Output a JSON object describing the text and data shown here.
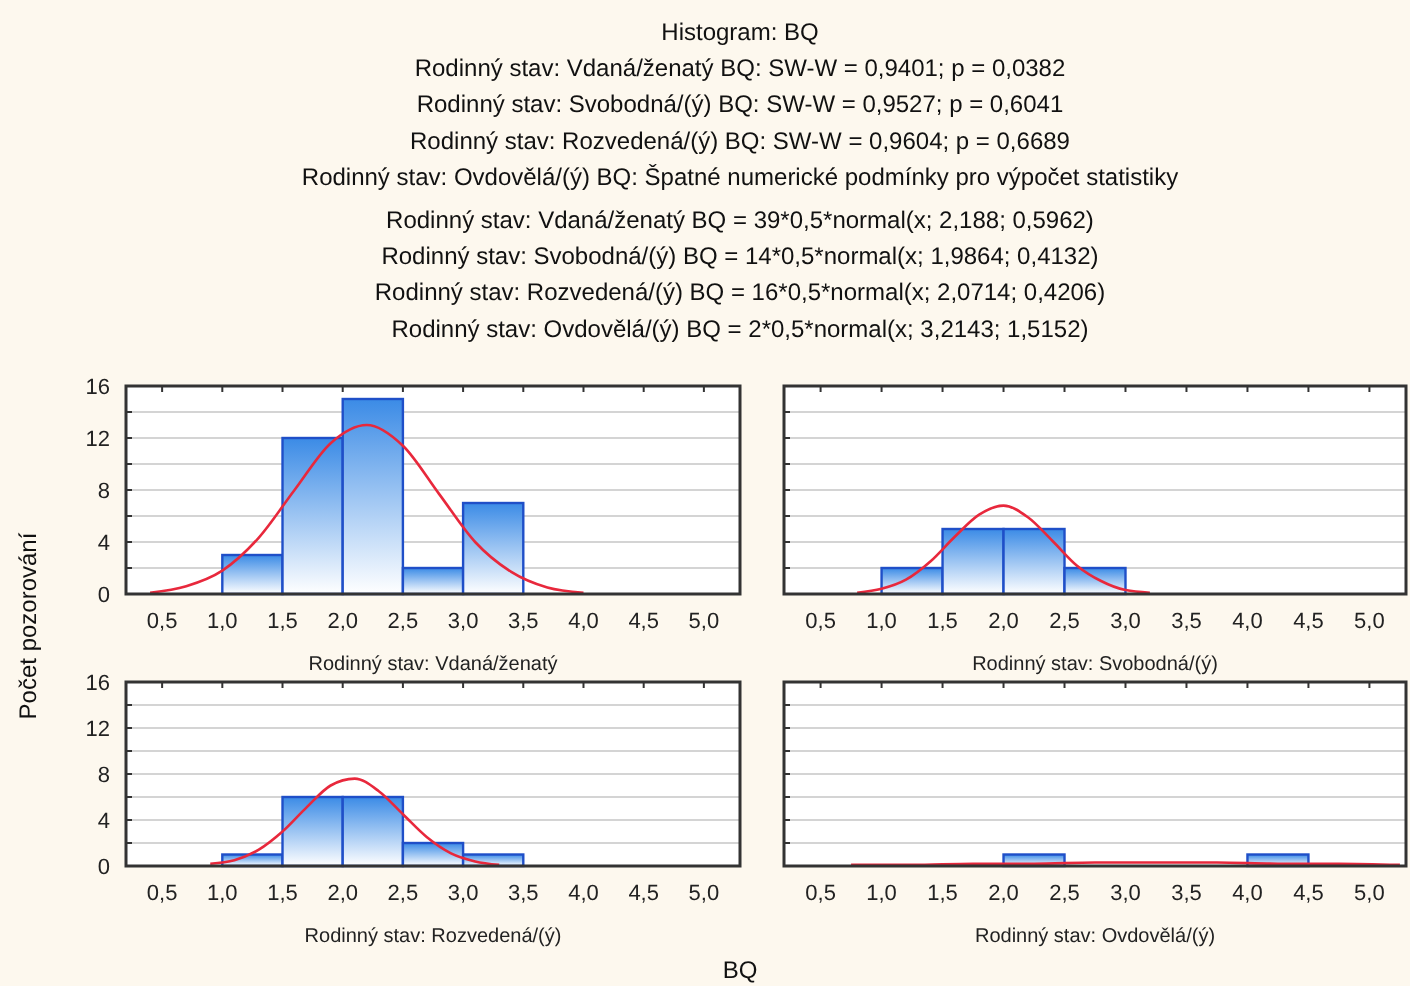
{
  "chart_data": [
    {
      "type": "histogram",
      "title": "Histogram: BQ",
      "xlabel": "Rodinný stav: Vdaná/ženatý",
      "ylabel": "Počet pozorování",
      "annotations": [
        "Rodinný stav: Vdaná/ženatý  BQ:   SW-W = 0,9401; p = 0,0382",
        "Rodinný stav: Svobodná/(ý)  BQ:   SW-W = 0,9527; p = 0,6041",
        "Rodinný stav: Rozvedená/(ý)  BQ:   SW-W = 0,9604; p = 0,6689",
        "Rodinný stav: Ovdovělá/(ý)  BQ:  Špatné numerické podmínky pro výpočet statistiky",
        "Rodinný stav: Vdaná/ženatý BQ = 39*0,5*normal(x; 2,188; 0,5962)",
        "Rodinný stav: Svobodná/(ý) BQ = 14*0,5*normal(x; 1,9864; 0,4132)",
        "Rodinný stav: Rozvedená/(ý) BQ = 16*0,5*normal(x; 2,0714; 0,4206)",
        "Rodinný stav: Ovdovělá/(ý) BQ = 2*0,5*normal(x; 3,2143; 1,5152)",
        "BQ"
      ],
      "series": [
        {
          "color": "#1f4fc8",
          "bins": [
            1,
            1.5,
            2,
            2.5,
            3,
            3.5
          ],
          "values": [
            3,
            12,
            15,
            2,
            7
          ]
        },
        {
          "type": "line",
          "color": "#e8283c",
          "x": [
            0.4,
            0.7,
            1,
            1.3,
            1.6,
            1.9,
            2.2,
            2.5,
            2.8,
            3.1,
            3.4,
            3.7,
            4
          ],
          "values": [
            0.1,
            0.6,
            1.8,
            4.3,
            8,
            11.6,
            13,
            11.4,
            7.7,
            4,
            1.7,
            0.5,
            0.1
          ]
        }
      ],
      "xlim": [
        0.2,
        5.3
      ],
      "ylim": [
        0,
        16
      ],
      "xticks": [
        {
          "value": 0.5,
          "label": "0,5"
        },
        {
          "value": 1,
          "label": "1,0"
        },
        {
          "value": 1.5,
          "label": "1,5"
        },
        {
          "value": 2,
          "label": "2,0"
        },
        {
          "value": 2.5,
          "label": "2,5"
        },
        {
          "value": 3,
          "label": "3,0"
        },
        {
          "value": 3.5,
          "label": "3,5"
        },
        {
          "value": 4,
          "label": "4,0"
        },
        {
          "value": 4.5,
          "label": "4,5"
        },
        {
          "value": 5,
          "label": "5,0"
        }
      ],
      "yticks": [
        0,
        {
          "value": 2,
          "label": null
        },
        4,
        {
          "value": 6,
          "label": null
        },
        8,
        {
          "value": 10,
          "label": null
        },
        12,
        {
          "value": 14,
          "label": null
        },
        16
      ],
      "grid": "y"
    },
    {
      "type": "histogram",
      "xlabel": "Rodinný stav: Svobodná/(ý)",
      "series": [
        {
          "color": "#1f4fc8",
          "bins": [
            1,
            1.5,
            2,
            2.5,
            3
          ],
          "values": [
            2,
            5,
            5,
            2
          ]
        },
        {
          "type": "line",
          "color": "#e8283c",
          "x": [
            0.8,
            1,
            1.2,
            1.4,
            1.6,
            1.8,
            2,
            2.2,
            2.4,
            2.6,
            2.8,
            3,
            3.2
          ],
          "values": [
            0.1,
            0.4,
            1.1,
            2.5,
            4.4,
            6.1,
            6.8,
            5.9,
            4.1,
            2.2,
            1,
            0.3,
            0.1
          ]
        }
      ],
      "xlim": [
        0.2,
        5.3
      ],
      "ylim": [
        0,
        16
      ],
      "xticks": [
        {
          "value": 0.5,
          "label": "0,5"
        },
        {
          "value": 1,
          "label": "1,0"
        },
        {
          "value": 1.5,
          "label": "1,5"
        },
        {
          "value": 2,
          "label": "2,0"
        },
        {
          "value": 2.5,
          "label": "2,5"
        },
        {
          "value": 3,
          "label": "3,0"
        },
        {
          "value": 3.5,
          "label": "3,5"
        },
        {
          "value": 4,
          "label": "4,0"
        },
        {
          "value": 4.5,
          "label": "4,5"
        },
        {
          "value": 5,
          "label": "5,0"
        }
      ],
      "yticks": [
        0,
        {
          "value": 2,
          "label": null
        },
        4,
        {
          "value": 6,
          "label": null
        },
        8,
        {
          "value": 10,
          "label": null
        },
        12,
        {
          "value": 14,
          "label": null
        },
        16
      ],
      "grid": "y",
      "tick_labels": "x"
    },
    {
      "type": "histogram",
      "xlabel": "Rodinný stav: Rozvedená/(ý)",
      "series": [
        {
          "color": "#1f4fc8",
          "bins": [
            1,
            1.5,
            2,
            2.5,
            3,
            3.5
          ],
          "values": [
            1,
            6,
            6,
            2,
            1
          ]
        },
        {
          "type": "line",
          "color": "#e8283c",
          "x": [
            0.9,
            1.1,
            1.3,
            1.5,
            1.7,
            1.9,
            2.1,
            2.3,
            2.5,
            2.7,
            2.9,
            3.1,
            3.3
          ],
          "values": [
            0.2,
            0.5,
            1.4,
            3,
            5.1,
            7,
            7.6,
            6.5,
            4.5,
            2.5,
            1.1,
            0.4,
            0.1
          ]
        }
      ],
      "xlim": [
        0.2,
        5.3
      ],
      "ylim": [
        0,
        16
      ],
      "xticks": [
        {
          "value": 0.5,
          "label": "0,5"
        },
        {
          "value": 1,
          "label": "1,0"
        },
        {
          "value": 1.5,
          "label": "1,5"
        },
        {
          "value": 2,
          "label": "2,0"
        },
        {
          "value": 2.5,
          "label": "2,5"
        },
        {
          "value": 3,
          "label": "3,0"
        },
        {
          "value": 3.5,
          "label": "3,5"
        },
        {
          "value": 4,
          "label": "4,0"
        },
        {
          "value": 4.5,
          "label": "4,5"
        },
        {
          "value": 5,
          "label": "5,0"
        }
      ],
      "yticks": [
        0,
        {
          "value": 2,
          "label": null
        },
        4,
        {
          "value": 6,
          "label": null
        },
        8,
        {
          "value": 10,
          "label": null
        },
        12,
        {
          "value": 14,
          "label": null
        },
        16
      ],
      "grid": "y"
    },
    {
      "type": "histogram",
      "xlabel": "Rodinný stav: Ovdovělá/(ý)",
      "series": [
        {
          "color": "#1f4fc8",
          "bins": [
            2,
            2.5,
            3,
            3.5,
            4,
            4.5
          ],
          "values": [
            1,
            0,
            0,
            0,
            1
          ]
        },
        {
          "type": "line",
          "color": "#e8283c",
          "x": [
            0.75,
            1.25,
            1.75,
            2.25,
            2.75,
            3.25,
            3.75,
            4.25,
            4.75,
            5.25
          ],
          "values": [
            0.1,
            0.1,
            0.2,
            0.2,
            0.3,
            0.3,
            0.3,
            0.2,
            0.2,
            0.1
          ]
        }
      ],
      "xlim": [
        0.2,
        5.3
      ],
      "ylim": [
        0,
        16
      ],
      "xticks": [
        {
          "value": 0.5,
          "label": "0,5"
        },
        {
          "value": 1,
          "label": "1,0"
        },
        {
          "value": 1.5,
          "label": "1,5"
        },
        {
          "value": 2,
          "label": "2,0"
        },
        {
          "value": 2.5,
          "label": "2,5"
        },
        {
          "value": 3,
          "label": "3,0"
        },
        {
          "value": 3.5,
          "label": "3,5"
        },
        {
          "value": 4,
          "label": "4,0"
        },
        {
          "value": 4.5,
          "label": "4,5"
        },
        {
          "value": 5,
          "label": "5,0"
        }
      ],
      "yticks": [
        0,
        {
          "value": 2,
          "label": null
        },
        4,
        {
          "value": 6,
          "label": null
        },
        8,
        {
          "value": 10,
          "label": null
        },
        12,
        {
          "value": 14,
          "label": null
        },
        16
      ],
      "grid": "y",
      "tick_labels": "x"
    }
  ]
}
